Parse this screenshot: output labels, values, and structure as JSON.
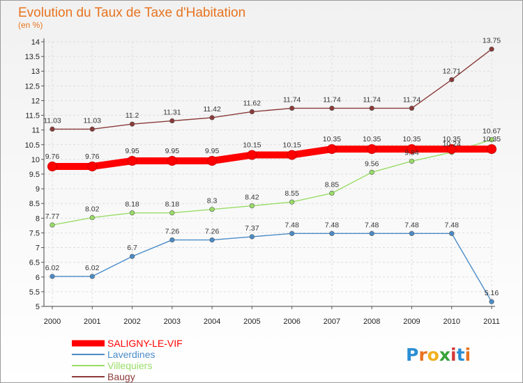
{
  "chart_data": {
    "type": "line",
    "title": "Evolution du Taux de Taxe d'Habitation",
    "subtitle": "(en %)",
    "xlabel": "",
    "ylabel": "",
    "x": [
      "2000",
      "2001",
      "2002",
      "2003",
      "2004",
      "2005",
      "2006",
      "2007",
      "2008",
      "2009",
      "2010",
      "2011"
    ],
    "ylim": [
      5,
      14
    ],
    "yticks": [
      "5",
      "5.5",
      "6",
      "6.5",
      "7",
      "7.5",
      "8",
      "8.5",
      "9",
      "9.5",
      "10",
      "10.5",
      "11",
      "11.5",
      "12",
      "12.5",
      "13",
      "13.5",
      "14"
    ],
    "grid": true,
    "legend_position": "bottom-left",
    "series": [
      {
        "name": "SALIGNY-LE-VIF",
        "color": "#ff0000",
        "values": [
          9.76,
          9.76,
          9.95,
          9.95,
          9.95,
          10.15,
          10.15,
          10.35,
          10.35,
          10.35,
          10.35,
          10.35
        ],
        "labels": [
          "9.76",
          "9.76",
          "9.95",
          "9.95",
          "9.95",
          "10.15",
          "10.15",
          "10.35",
          "10.35",
          "10.35",
          "10.35",
          "10.35"
        ]
      },
      {
        "name": "Laverdines",
        "color": "#4a8cc8",
        "values": [
          6.02,
          6.02,
          6.7,
          7.26,
          7.26,
          7.37,
          7.48,
          7.48,
          7.48,
          7.48,
          7.48,
          5.16
        ],
        "labels": [
          "6.02",
          "6.02",
          "6.7",
          "7.26",
          "7.26",
          "7.37",
          "7.48",
          "7.48",
          "7.48",
          "7.48",
          "7.48",
          "5.16"
        ]
      },
      {
        "name": "Villequiers",
        "color": "#99dd66",
        "values": [
          7.77,
          8.02,
          8.18,
          8.18,
          8.3,
          8.42,
          8.55,
          8.85,
          9.56,
          9.94,
          10.24,
          10.67
        ],
        "labels": [
          "7.77",
          "8.02",
          "8.18",
          "8.18",
          "8.3",
          "8.42",
          "8.55",
          "8.85",
          "9.56",
          "9.94",
          "10.24",
          "10.67"
        ]
      },
      {
        "name": "Baugy",
        "color": "#8b3a3a",
        "values": [
          11.03,
          11.03,
          11.2,
          11.31,
          11.42,
          11.62,
          11.74,
          11.74,
          11.74,
          11.74,
          12.71,
          13.75
        ],
        "labels": [
          "11.03",
          "11.03",
          "11.2",
          "11.31",
          "11.42",
          "11.62",
          "11.74",
          "11.74",
          "11.74",
          "11.74",
          "12.71",
          "13.75"
        ]
      }
    ]
  },
  "logo": {
    "text": "Proxiti"
  }
}
